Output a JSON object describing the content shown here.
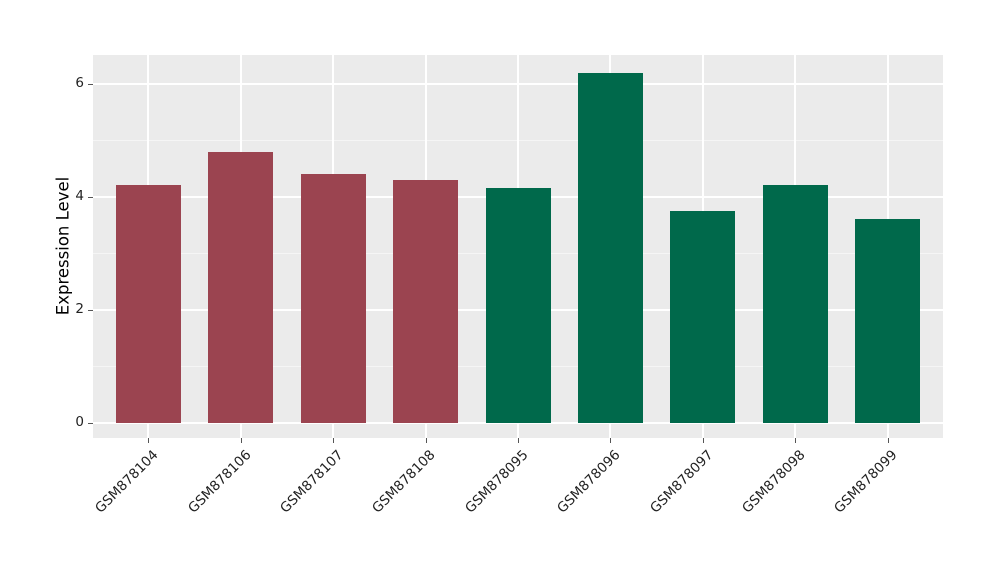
{
  "chart_data": {
    "type": "bar",
    "title": "",
    "xlabel": "",
    "ylabel": "Expression Level",
    "categories": [
      "GSM878104",
      "GSM878106",
      "GSM878107",
      "GSM878108",
      "GSM878095",
      "GSM878096",
      "GSM878097",
      "GSM878098",
      "GSM878099"
    ],
    "values": [
      4.2,
      4.8,
      4.4,
      4.3,
      4.15,
      6.2,
      3.75,
      4.2,
      3.6
    ],
    "bar_colors": [
      "#9B4450",
      "#9B4450",
      "#9B4450",
      "#9B4450",
      "#00694B",
      "#00694B",
      "#00694B",
      "#00694B",
      "#00694B"
    ],
    "yticks": [
      0,
      2,
      4,
      6
    ],
    "minor_yticks": [
      1,
      3,
      5
    ],
    "ylim": [
      -0.27,
      6.51
    ],
    "grid": "on",
    "legend": "none",
    "panel_background": "#EBEBEB",
    "gridline_color": "#FFFFFF",
    "xtick_rotation_deg": 45
  }
}
